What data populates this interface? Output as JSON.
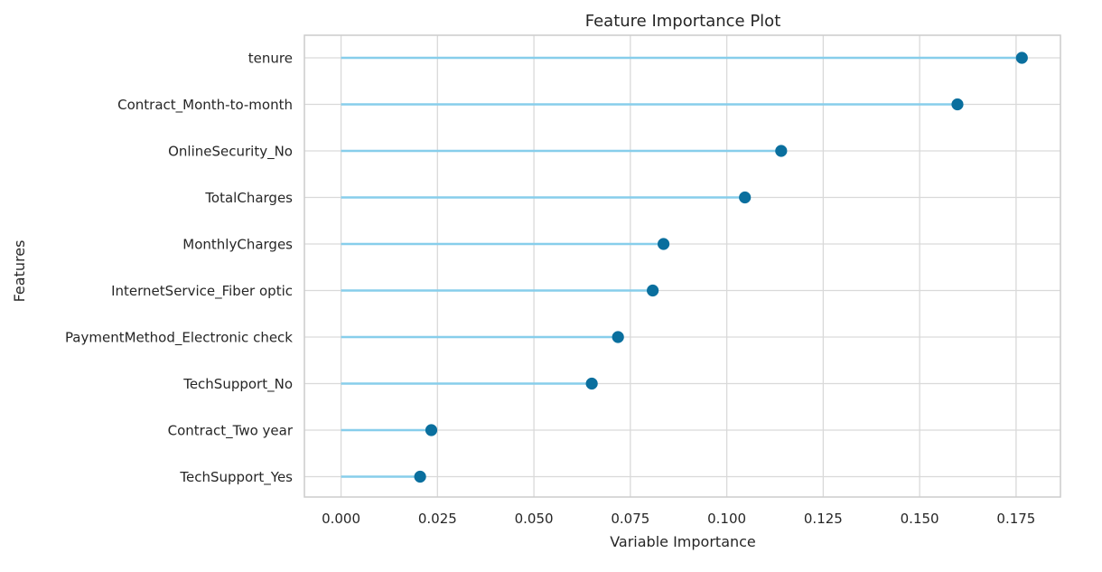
{
  "chart_data": {
    "type": "lollipop",
    "title": "Feature Importance Plot",
    "xlabel": "Variable Importance",
    "ylabel": "Features",
    "xlim": [
      -0.0095,
      0.1865
    ],
    "x_ticks": [
      {
        "value": 0.0,
        "label": "0.000"
      },
      {
        "value": 0.025,
        "label": "0.025"
      },
      {
        "value": 0.05,
        "label": "0.050"
      },
      {
        "value": 0.075,
        "label": "0.075"
      },
      {
        "value": 0.1,
        "label": "0.100"
      },
      {
        "value": 0.125,
        "label": "0.125"
      },
      {
        "value": 0.15,
        "label": "0.150"
      },
      {
        "value": 0.175,
        "label": "0.175"
      }
    ],
    "categories": [
      "tenure",
      "Contract_Month-to-month",
      "OnlineSecurity_No",
      "TotalCharges",
      "MonthlyCharges",
      "InternetService_Fiber optic",
      "PaymentMethod_Electronic check",
      "TechSupport_No",
      "Contract_Two year",
      "TechSupport_Yes"
    ],
    "values": [
      0.1765,
      0.1598,
      0.1141,
      0.1047,
      0.0836,
      0.0808,
      0.0718,
      0.065,
      0.0234,
      0.0205
    ],
    "grid": true,
    "colors": {
      "stem": "#87ceeb",
      "marker": "#0a6f9e",
      "grid": "#d9d9d9",
      "axes_edge": "#cccccc",
      "text": "#262626"
    }
  }
}
